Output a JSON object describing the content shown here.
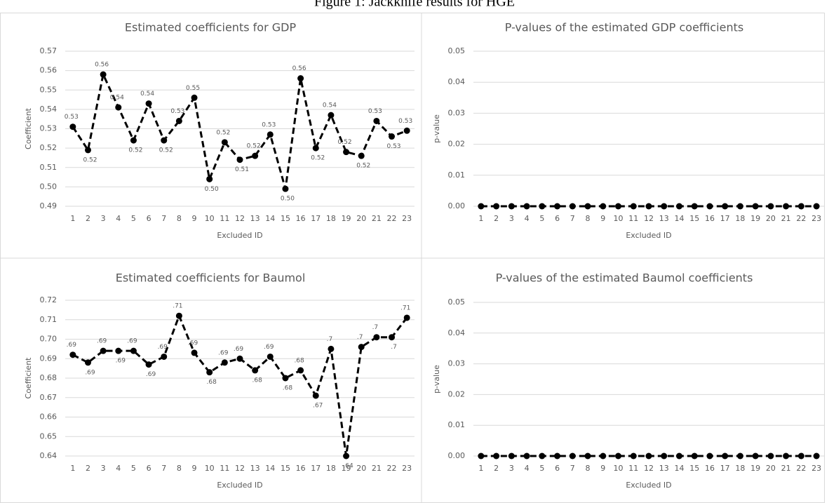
{
  "figure_title": "Figure 1: Jackknife results for HGE",
  "chart_data": [
    {
      "type": "line",
      "title": "Estimated coefficients for GDP",
      "x_label": "Excluded ID",
      "y_label": "Coefficient",
      "categories": [
        "1",
        "2",
        "3",
        "4",
        "5",
        "6",
        "7",
        "8",
        "9",
        "10",
        "11",
        "12",
        "13",
        "14",
        "15",
        "16",
        "17",
        "18",
        "19",
        "20",
        "21",
        "22",
        "23"
      ],
      "values": [
        0.531,
        0.519,
        0.558,
        0.541,
        0.524,
        0.543,
        0.524,
        0.534,
        0.546,
        0.504,
        0.523,
        0.514,
        0.516,
        0.527,
        0.499,
        0.556,
        0.52,
        0.537,
        0.518,
        0.516,
        0.534,
        0.526,
        0.529
      ],
      "value_labels": [
        "0.53",
        "0.52",
        "0.56",
        "0.54",
        "0.52",
        "0.54",
        "0.52",
        "0.53",
        "0.55",
        "0.50",
        "0.52",
        "0.51",
        "0.52",
        "0.53",
        "0.50",
        "0.56",
        "0.52",
        "0.54",
        "0.52",
        "0.52",
        "0.53",
        "0.53",
        "0.53"
      ],
      "color": "#000000",
      "line_style": "dashed",
      "grid": true,
      "ylim": [
        0.49,
        0.57
      ],
      "yticks": [
        0.49,
        {
          "value": 0.5,
          "label": "0.50"
        },
        0.51,
        0.52,
        0.53,
        0.54,
        0.55,
        0.56,
        0.57
      ]
    },
    {
      "type": "line",
      "title": "P-values of the estimated GDP coefficients",
      "x_label": "Excluded ID",
      "y_label": "p-value",
      "categories": [
        "1",
        "2",
        "3",
        "4",
        "5",
        "6",
        "7",
        "8",
        "9",
        "10",
        "11",
        "12",
        "13",
        "14",
        "15",
        "16",
        "17",
        "18",
        "19",
        "20",
        "21",
        "22",
        "23"
      ],
      "values": [
        0,
        0,
        0,
        0,
        0,
        0,
        0,
        0,
        0,
        0,
        0,
        0,
        0,
        0,
        0,
        0,
        0,
        0,
        0,
        0,
        0,
        0,
        0
      ],
      "color": "#000000",
      "line_style": "dashed",
      "grid": true,
      "ylim": [
        0,
        0.05
      ],
      "yticks": [
        {
          "value": 0,
          "label": "0.00"
        },
        0.01,
        0.02,
        0.03,
        0.04,
        0.05
      ]
    },
    {
      "type": "line",
      "title": "Estimated coefficients for Baumol",
      "x_label": "Excluded ID",
      "y_label": "Coefficient",
      "categories": [
        "1",
        "2",
        "3",
        "4",
        "5",
        "6",
        "7",
        "8",
        "9",
        "10",
        "11",
        "12",
        "13",
        "14",
        "15",
        "16",
        "17",
        "18",
        "19",
        "20",
        "21",
        "22",
        "23"
      ],
      "values": [
        0.692,
        0.688,
        0.694,
        0.694,
        0.694,
        0.687,
        0.691,
        0.712,
        0.693,
        0.683,
        0.688,
        0.69,
        0.684,
        0.691,
        0.68,
        0.684,
        0.671,
        0.695,
        0.64,
        0.696,
        0.701,
        0.701,
        0.711
      ],
      "value_labels": [
        ".69",
        ".69",
        ".69",
        ".69",
        ".69",
        ".69",
        ".69",
        ".71",
        ".69",
        ".68",
        ".69",
        ".69",
        ".68",
        ".69",
        ".68",
        ".68",
        ".67",
        ".7",
        ".64",
        ".7",
        ".7",
        ".7",
        ".71"
      ],
      "color": "#000000",
      "line_style": "dashed",
      "grid": true,
      "ylim": [
        0.64,
        0.72
      ],
      "yticks": [
        0.64,
        0.65,
        0.66,
        0.67,
        0.68,
        0.69,
        {
          "value": 0.7,
          "label": "0.70"
        },
        0.71,
        0.72
      ]
    },
    {
      "type": "line",
      "title": "P-values of the estimated Baumol coefficients",
      "x_label": "Excluded ID",
      "y_label": "p-value",
      "categories": [
        "1",
        "2",
        "3",
        "4",
        "5",
        "6",
        "7",
        "8",
        "9",
        "10",
        "11",
        "12",
        "13",
        "14",
        "15",
        "16",
        "17",
        "18",
        "19",
        "20",
        "21",
        "22",
        "23"
      ],
      "values": [
        0,
        0,
        0,
        0,
        0,
        0,
        0,
        0,
        0,
        0,
        0,
        0,
        0,
        0,
        0,
        0,
        0,
        0,
        0,
        0,
        0,
        0,
        0
      ],
      "color": "#000000",
      "line_style": "dashed",
      "grid": true,
      "ylim": [
        0,
        0.05
      ],
      "yticks": [
        {
          "value": 0,
          "label": "0.00"
        },
        0.01,
        0.02,
        0.03,
        0.04,
        0.05
      ]
    }
  ]
}
